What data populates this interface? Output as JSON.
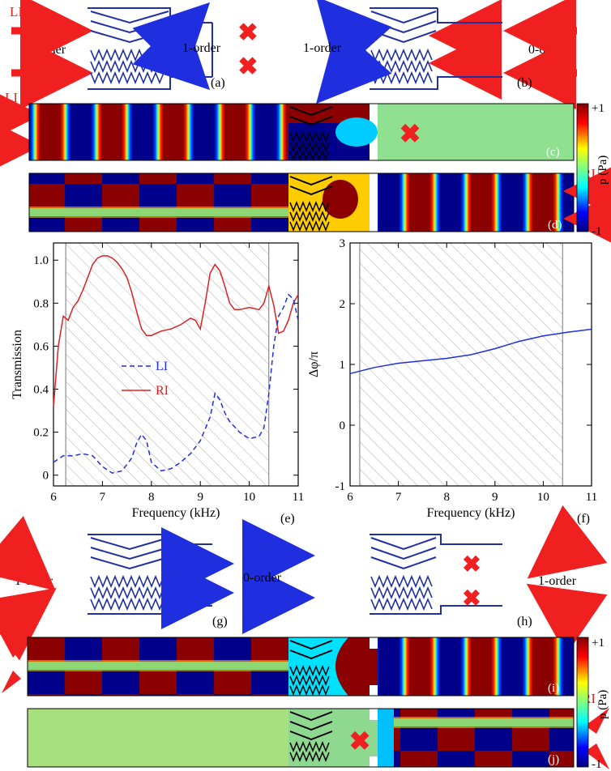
{
  "labels": {
    "li": "LI",
    "ri": "RI",
    "zero_order": "0-order",
    "one_order": "1-order",
    "panel_a": "(a)",
    "panel_b": "(b)",
    "panel_c": "(c)",
    "panel_d": "(d)",
    "panel_e": "(e)",
    "panel_f": "(f)",
    "panel_g": "(g)",
    "panel_h": "(h)",
    "panel_i": "(i)",
    "panel_j": "(j)"
  },
  "colorbar": {
    "max_label": "+1",
    "min_label": "-1",
    "title": "p (Pa)"
  },
  "colors": {
    "red": "#f02020",
    "blue": "#1f2fe0",
    "dark_red": "#8b0000",
    "dark_blue": "#00008b",
    "green": "#7fd67f",
    "hatch": "#999999"
  },
  "chart_data": [
    {
      "type": "line",
      "panel": "(e)",
      "xlabel": "Frequency (kHz)",
      "ylabel": "Transmission",
      "xlim": [
        6,
        11
      ],
      "ylim": [
        -0.05,
        1.08
      ],
      "xticks": [
        6,
        7,
        8,
        9,
        10,
        11
      ],
      "yticks": [
        0,
        0.2,
        0.4,
        0.6,
        0.8,
        1.0
      ],
      "ytick_labels": [
        "0",
        "0.2",
        "0.4",
        "0.6",
        "0.8",
        "1.0"
      ],
      "hatched_range": [
        6.25,
        10.4
      ],
      "legend": [
        {
          "name": "LI",
          "style": "dashed",
          "color": "#1f2fe0"
        },
        {
          "name": "RI",
          "style": "solid",
          "color": "#e02020"
        }
      ],
      "series": [
        {
          "name": "RI",
          "x": [
            6.0,
            6.1,
            6.2,
            6.3,
            6.4,
            6.5,
            6.6,
            6.7,
            6.8,
            6.9,
            7.0,
            7.1,
            7.2,
            7.3,
            7.4,
            7.5,
            7.6,
            7.7,
            7.8,
            7.9,
            8.0,
            8.2,
            8.4,
            8.6,
            8.8,
            8.9,
            9.0,
            9.1,
            9.2,
            9.3,
            9.4,
            9.5,
            9.6,
            9.7,
            9.8,
            10.0,
            10.2,
            10.3,
            10.4,
            10.5,
            10.6,
            10.7,
            10.8,
            10.9,
            11.0
          ],
          "y": [
            0.32,
            0.6,
            0.74,
            0.72,
            0.78,
            0.81,
            0.86,
            0.92,
            0.98,
            1.01,
            1.02,
            1.02,
            1.01,
            0.99,
            0.96,
            0.92,
            0.85,
            0.76,
            0.68,
            0.65,
            0.65,
            0.67,
            0.68,
            0.7,
            0.73,
            0.72,
            0.68,
            0.8,
            0.94,
            0.98,
            0.95,
            0.88,
            0.8,
            0.77,
            0.77,
            0.78,
            0.77,
            0.8,
            0.88,
            0.79,
            0.66,
            0.67,
            0.72,
            0.8,
            0.84
          ]
        },
        {
          "name": "LI",
          "x": [
            6.0,
            6.2,
            6.4,
            6.6,
            6.8,
            7.0,
            7.2,
            7.4,
            7.6,
            7.7,
            7.8,
            7.9,
            8.0,
            8.2,
            8.4,
            8.6,
            8.8,
            9.0,
            9.2,
            9.3,
            9.4,
            9.5,
            9.6,
            9.8,
            10.0,
            10.2,
            10.3,
            10.4,
            10.5,
            10.6,
            10.7,
            10.8,
            10.9,
            11.0
          ],
          "y": [
            0.06,
            0.09,
            0.09,
            0.1,
            0.09,
            0.04,
            0.01,
            0.02,
            0.08,
            0.15,
            0.19,
            0.16,
            0.06,
            0.02,
            0.03,
            0.06,
            0.1,
            0.16,
            0.27,
            0.38,
            0.35,
            0.29,
            0.25,
            0.2,
            0.17,
            0.18,
            0.22,
            0.38,
            0.6,
            0.74,
            0.78,
            0.84,
            0.82,
            0.72
          ]
        }
      ]
    },
    {
      "type": "line",
      "panel": "(f)",
      "xlabel": "Frequency (kHz)",
      "ylabel": "Δφ/π",
      "xlim": [
        6,
        11
      ],
      "ylim": [
        -1,
        3
      ],
      "xticks": [
        6,
        7,
        8,
        9,
        10,
        11
      ],
      "yticks": [
        -1,
        0,
        1,
        2,
        3
      ],
      "hatched_range": [
        6.2,
        10.4
      ],
      "series": [
        {
          "name": "phase",
          "color": "#1f2fe0",
          "x": [
            6.0,
            6.5,
            7.0,
            7.5,
            8.0,
            8.5,
            9.0,
            9.5,
            10.0,
            10.5,
            11.0
          ],
          "y": [
            0.85,
            0.95,
            1.02,
            1.06,
            1.1,
            1.16,
            1.26,
            1.38,
            1.47,
            1.53,
            1.58
          ]
        }
      ]
    }
  ]
}
